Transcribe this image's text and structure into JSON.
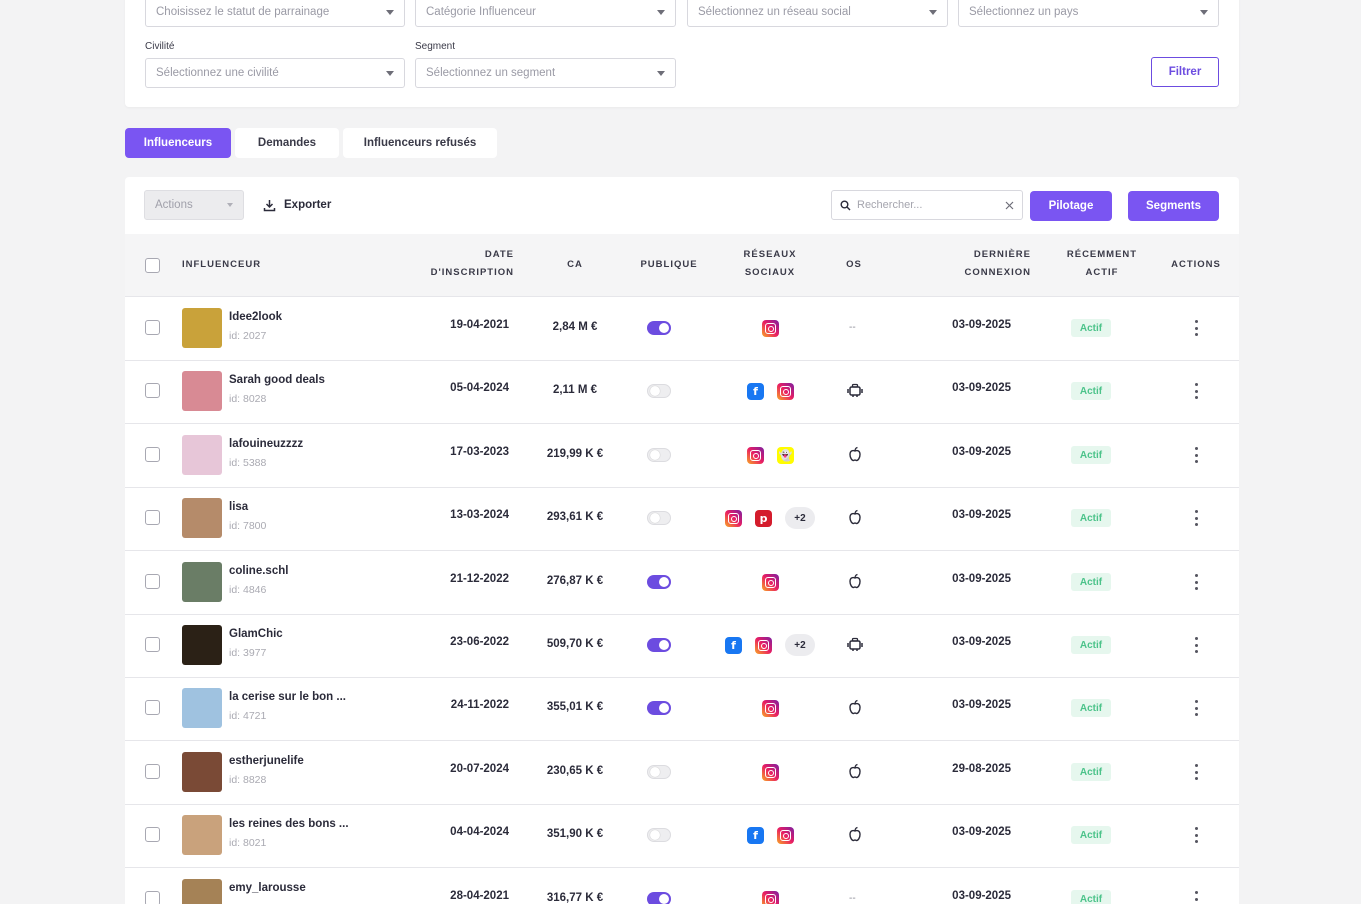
{
  "filters": {
    "parrainage_placeholder": "Choisissez le statut de parrainage",
    "categorie_placeholder": "Catégorie Influenceur",
    "reseau_placeholder": "Sélectionnez un réseau social",
    "pays_placeholder": "Sélectionnez un pays",
    "civilite_label": "Civilité",
    "civilite_placeholder": "Sélectionnez une civilité",
    "segment_label": "Segment",
    "segment_placeholder": "Sélectionnez un segment",
    "filter_button": "Filtrer"
  },
  "tabs": [
    {
      "label": "Influenceurs",
      "active": true
    },
    {
      "label": "Demandes",
      "active": false
    },
    {
      "label": "Influenceurs refusés",
      "active": false
    }
  ],
  "toolbar": {
    "actions_label": "Actions",
    "export_label": "Exporter",
    "search_placeholder": "Rechercher...",
    "pilotage_label": "Pilotage",
    "segments_label": "Segments"
  },
  "columns": {
    "influenceur": "INFLUENCEUR",
    "date_line1": "DATE",
    "date_line2": "D'INSCRIPTION",
    "ca": "CA",
    "publique": "PUBLIQUE",
    "reseaux_line1": "RÉSEAUX",
    "reseaux_line2": "SOCIAUX",
    "os": "OS",
    "derniere_line1": "DERNIÈRE",
    "derniere_line2": "CONNEXION",
    "recent_line1": "RÉCEMMENT",
    "recent_line2": "ACTIF",
    "actions": "ACTIONS"
  },
  "rows": [
    {
      "name": "Idee2look",
      "id": "id: 2027",
      "date": "19-04-2021",
      "ca": "2,84 M €",
      "public": true,
      "networks": [
        "instagram"
      ],
      "extra": "",
      "os": "none",
      "os_text": "--",
      "last": "03-09-2025",
      "status": "Actif",
      "avatar_color": "#c9a23a"
    },
    {
      "name": "Sarah good deals",
      "id": "id: 8028",
      "date": "05-04-2024",
      "ca": "2,11 M €",
      "public": false,
      "networks": [
        "facebook",
        "instagram"
      ],
      "extra": "",
      "os": "android",
      "os_text": "",
      "last": "03-09-2025",
      "status": "Actif",
      "avatar_color": "#d88a94"
    },
    {
      "name": "lafouineuzzzz",
      "id": "id: 5388",
      "date": "17-03-2023",
      "ca": "219,99 K €",
      "public": false,
      "networks": [
        "instagram",
        "snapchat"
      ],
      "extra": "",
      "os": "ios",
      "os_text": "",
      "last": "03-09-2025",
      "status": "Actif",
      "avatar_color": "#e7c6d8"
    },
    {
      "name": "lisa",
      "id": "id: 7800",
      "date": "13-03-2024",
      "ca": "293,61 K €",
      "public": false,
      "networks": [
        "instagram",
        "pinterest"
      ],
      "extra": "+2",
      "os": "ios",
      "os_text": "",
      "last": "03-09-2025",
      "status": "Actif",
      "avatar_color": "#b58b6a"
    },
    {
      "name": "coline.schl",
      "id": "id: 4846",
      "date": "21-12-2022",
      "ca": "276,87 K €",
      "public": true,
      "networks": [
        "instagram"
      ],
      "extra": "",
      "os": "ios",
      "os_text": "",
      "last": "03-09-2025",
      "status": "Actif",
      "avatar_color": "#6a7d66"
    },
    {
      "name": "GlamChic",
      "id": "id: 3977",
      "date": "23-06-2022",
      "ca": "509,70 K €",
      "public": true,
      "networks": [
        "facebook",
        "instagram"
      ],
      "extra": "+2",
      "os": "android",
      "os_text": "",
      "last": "03-09-2025",
      "status": "Actif",
      "avatar_color": "#2b2116"
    },
    {
      "name": "la cerise sur le bon ...",
      "id": "id: 4721",
      "date": "24-11-2022",
      "ca": "355,01 K €",
      "public": true,
      "networks": [
        "instagram"
      ],
      "extra": "",
      "os": "ios",
      "os_text": "",
      "last": "03-09-2025",
      "status": "Actif",
      "avatar_color": "#9fc2e0"
    },
    {
      "name": "estherjunelife",
      "id": "id: 8828",
      "date": "20-07-2024",
      "ca": "230,65 K €",
      "public": false,
      "networks": [
        "instagram"
      ],
      "extra": "",
      "os": "ios",
      "os_text": "",
      "last": "29-08-2025",
      "status": "Actif",
      "avatar_color": "#7a4a36"
    },
    {
      "name": "les reines des bons ...",
      "id": "id: 8021",
      "date": "04-04-2024",
      "ca": "351,90 K €",
      "public": false,
      "networks": [
        "facebook",
        "instagram"
      ],
      "extra": "",
      "os": "ios",
      "os_text": "",
      "last": "03-09-2025",
      "status": "Actif",
      "avatar_color": "#c9a27c"
    },
    {
      "name": "emy_larousse",
      "id": "",
      "date": "28-04-2021",
      "ca": "316,77 K €",
      "public": true,
      "networks": [
        "instagram"
      ],
      "extra": "",
      "os": "none",
      "os_text": "--",
      "last": "03-09-2025",
      "status": "Actif",
      "avatar_color": "#a58256"
    }
  ]
}
